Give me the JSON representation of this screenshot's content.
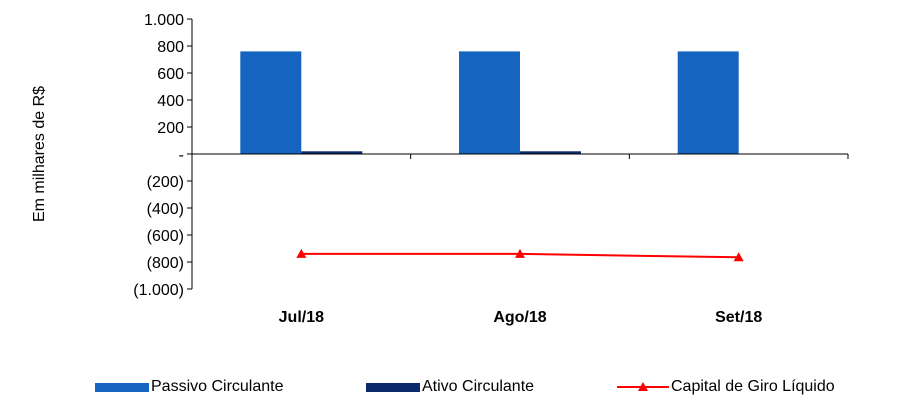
{
  "chart_data": {
    "type": "bar",
    "categories": [
      "Jul/18",
      "Ago/18",
      "Set/18"
    ],
    "series": [
      {
        "name": "Passivo Circulante",
        "type": "bar",
        "color": "#1565C0",
        "values": [
          760,
          760,
          760
        ]
      },
      {
        "name": "Ativo Circulante",
        "type": "bar",
        "color": "#0A2A6B",
        "values": [
          20,
          20,
          0
        ]
      },
      {
        "name": "Capital de Giro Líquido",
        "type": "line",
        "color": "#FF0000",
        "marker": "triangle",
        "values": [
          -740,
          -740,
          -765
        ]
      }
    ],
    "ylabel": "Em milhares de R$",
    "ylim": [
      -1000,
      1000
    ],
    "yticks": [
      1000,
      800,
      600,
      400,
      200,
      0,
      -200,
      -400,
      -600,
      -800,
      -1000
    ],
    "ytick_labels": [
      "1.000",
      "800",
      "600",
      "400",
      "200",
      "-",
      "(200)",
      "(400)",
      "(600)",
      "(800)",
      "(1.000)"
    ],
    "grid": false,
    "legend_position": "bottom"
  }
}
